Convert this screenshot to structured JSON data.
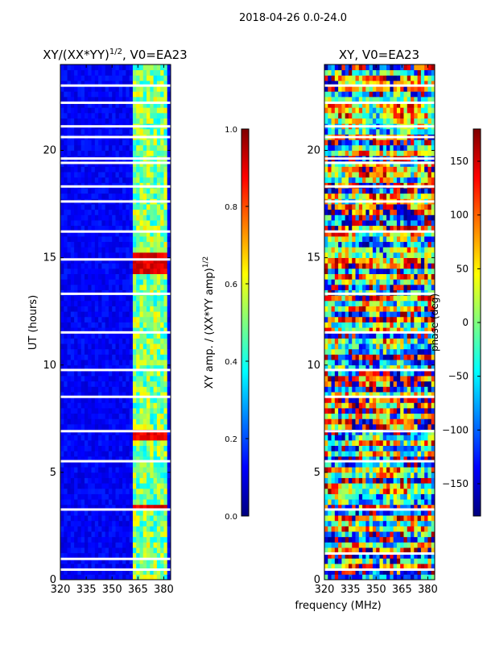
{
  "figure": {
    "suptitle": "2018-04-26 0.0-24.0",
    "xlabel": "frequency (MHz)"
  },
  "colors": {
    "background": "#ffffff",
    "colormap": "jet",
    "jet_stops": [
      "#00007f",
      "#0000ff",
      "#007fff",
      "#00ffff",
      "#7fff7f",
      "#ffff00",
      "#ff7f00",
      "#ff0000",
      "#7f0000"
    ]
  },
  "chart_data": [
    {
      "type": "heatmap",
      "title_main": "XY/(XX*YY)",
      "title_sup": "1/2",
      "title_tail": ", V0=EA23",
      "xlabel": "",
      "ylabel": "UT (hours)",
      "xlim": [
        320,
        384
      ],
      "ylim": [
        0,
        24
      ],
      "xticks": [
        320,
        335,
        350,
        365,
        380
      ],
      "yticks": [
        0,
        5,
        10,
        15,
        20
      ],
      "data_gaps_hours": [
        0.45,
        0.95,
        3.25,
        5.5,
        6.9,
        8.5,
        9.75,
        11.5,
        13.3,
        14.9,
        16.2,
        17.6,
        18.3,
        19.4,
        19.6,
        20.6,
        21.1,
        22.2,
        23.0
      ],
      "bright_channels_MHz": [
        364,
        366,
        370,
        372,
        376,
        380
      ],
      "value_range": [
        0.0,
        1.0
      ],
      "colorbar": {
        "label_main": "XY amp. / (XX*YY amp)",
        "label_sup": "1/2",
        "min": 0.0,
        "max": 1.0,
        "ticks": [
          "0.0",
          "0.2",
          "0.4",
          "0.6",
          "0.8",
          "1.0"
        ],
        "tick_values": [
          0.0,
          0.2,
          0.4,
          0.6,
          0.8,
          1.0
        ]
      }
    },
    {
      "type": "heatmap",
      "title_main": "XY, V0=EA23",
      "xlabel": "frequency (MHz)",
      "ylabel": "",
      "xlim": [
        320,
        384
      ],
      "ylim": [
        0,
        24
      ],
      "xticks": [
        320,
        335,
        350,
        365,
        380
      ],
      "yticks": [
        0,
        5,
        10,
        15,
        20
      ],
      "data_gaps_hours": [
        0.45,
        1.2,
        3.25,
        5.5,
        6.9,
        8.5,
        9.75,
        11.5,
        13.3,
        16.2,
        17.6,
        18.3,
        19.4,
        19.6,
        20.6,
        21.1,
        22.2,
        23.0
      ],
      "value_range": [
        -180,
        180
      ],
      "colorbar": {
        "label_main": "phase (deg)",
        "min": -180,
        "max": 180,
        "ticks": [
          "−150",
          "−100",
          "−50",
          "0",
          "50",
          "100",
          "150"
        ],
        "tick_values": [
          -150,
          -100,
          -50,
          0,
          50,
          100,
          150
        ]
      }
    }
  ]
}
